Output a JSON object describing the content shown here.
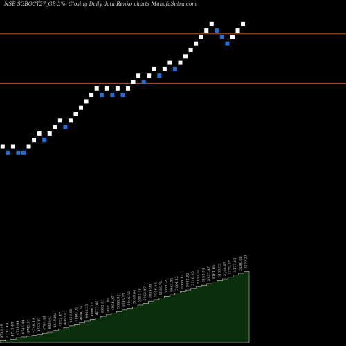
{
  "chart_data": {
    "type": "renko",
    "title": "NSE SGBOCT27_GB 3%-  Closing Daily data  Renko  charts MunafaSutra.com",
    "colors": {
      "background": "#000000",
      "up_brick": "#ffffff",
      "down_brick": "#1f6fd6",
      "reference_line": "#b5591d",
      "volume_fill": "#0b2e0b",
      "volume_stroke": "#cfcfcf"
    },
    "bricks": [
      {
        "level": 0,
        "dir": "up"
      },
      {
        "level": -1,
        "dir": "down"
      },
      {
        "level": 0,
        "dir": "up"
      },
      {
        "level": -1,
        "dir": "down"
      },
      {
        "level": -1,
        "dir": "down"
      },
      {
        "level": 0,
        "dir": "up"
      },
      {
        "level": 1,
        "dir": "up"
      },
      {
        "level": 2,
        "dir": "up"
      },
      {
        "level": 1,
        "dir": "down"
      },
      {
        "level": 2,
        "dir": "up"
      },
      {
        "level": 3,
        "dir": "up"
      },
      {
        "level": 4,
        "dir": "up"
      },
      {
        "level": 3,
        "dir": "down"
      },
      {
        "level": 4,
        "dir": "up"
      },
      {
        "level": 5,
        "dir": "up"
      },
      {
        "level": 6,
        "dir": "up"
      },
      {
        "level": 7,
        "dir": "up"
      },
      {
        "level": 8,
        "dir": "up"
      },
      {
        "level": 9,
        "dir": "up"
      },
      {
        "level": 8,
        "dir": "down"
      },
      {
        "level": 9,
        "dir": "up"
      },
      {
        "level": 8,
        "dir": "down"
      },
      {
        "level": 9,
        "dir": "up"
      },
      {
        "level": 8,
        "dir": "down"
      },
      {
        "level": 9,
        "dir": "up"
      },
      {
        "level": 10,
        "dir": "up"
      },
      {
        "level": 11,
        "dir": "up"
      },
      {
        "level": 10,
        "dir": "down"
      },
      {
        "level": 11,
        "dir": "up"
      },
      {
        "level": 12,
        "dir": "up"
      },
      {
        "level": 11,
        "dir": "down"
      },
      {
        "level": 12,
        "dir": "up"
      },
      {
        "level": 13,
        "dir": "up"
      },
      {
        "level": 12,
        "dir": "down"
      },
      {
        "level": 13,
        "dir": "up"
      },
      {
        "level": 14,
        "dir": "up"
      },
      {
        "level": 15,
        "dir": "up"
      },
      {
        "level": 16,
        "dir": "up"
      },
      {
        "level": 17,
        "dir": "up"
      },
      {
        "level": 18,
        "dir": "up"
      },
      {
        "level": 19,
        "dir": "up"
      },
      {
        "level": 18,
        "dir": "down"
      },
      {
        "level": 17,
        "dir": "down"
      },
      {
        "level": 16,
        "dir": "down"
      },
      {
        "level": 17,
        "dir": "up"
      },
      {
        "level": 18,
        "dir": "up"
      },
      {
        "level": 19,
        "dir": "up"
      }
    ],
    "reference_levels": [
      {
        "name": "upper-line",
        "level": 17.5
      },
      {
        "name": "lower-line",
        "level": 9.8
      }
    ],
    "volume_labels": [
      "4713.49",
      "4713.49",
      "4713.48",
      "4718.44",
      "4745.44",
      "4745.81",
      "4746.19",
      "4750.17",
      "4764.64",
      "4806.43",
      "4819.86",
      "4852.47",
      "4852.82",
      "4859.69",
      "4866.05",
      "4881.26",
      "4902.35",
      "4906.75",
      "4923.06",
      "4951.83",
      "4951.85",
      "4951.97",
      "5040.99",
      "5045.27",
      "5046.62",
      "5046.66",
      "5052.46",
      "5052.47",
      "5054.99",
      "5056.66",
      "5056.75",
      "5059.28",
      "5063.91",
      "5064.12",
      "5066.12",
      "5082.62",
      "5116.95",
      "5153.34",
      "5153.44",
      "5157.47",
      "5161.65",
      "5163.55",
      "5168.67",
      "5175.37",
      "5177.43",
      "5180.06",
      "5200.21"
    ],
    "volume_fill_heights": [
      0.02,
      0.03,
      0.04,
      0.06,
      0.07,
      0.08,
      0.09,
      0.1,
      0.12,
      0.13,
      0.15,
      0.17,
      0.19,
      0.21,
      0.23,
      0.25,
      0.27,
      0.29,
      0.31,
      0.33,
      0.35,
      0.37,
      0.39,
      0.41,
      0.43,
      0.45,
      0.47,
      0.49,
      0.52,
      0.54,
      0.56,
      0.58,
      0.6,
      0.62,
      0.64,
      0.66,
      0.68,
      0.7,
      0.72,
      0.74,
      0.76,
      0.78,
      0.8,
      0.82,
      0.85,
      0.87,
      0.89
    ]
  }
}
